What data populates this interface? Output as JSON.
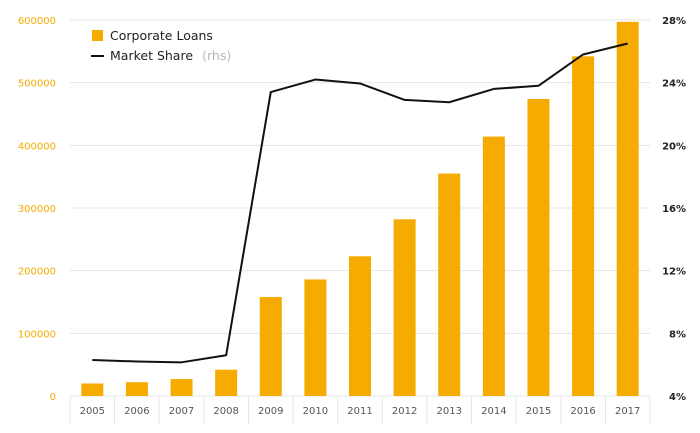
{
  "chart_data": {
    "type": "bar+line",
    "categories": [
      "2005",
      "2006",
      "2007",
      "2008",
      "2009",
      "2010",
      "2011",
      "2012",
      "2013",
      "2014",
      "2015",
      "2016",
      "2017"
    ],
    "series": [
      {
        "name": "Corporate Loans",
        "type": "bar",
        "axis": "left",
        "values": [
          20000,
          22000,
          27000,
          42000,
          158000,
          186000,
          223000,
          282000,
          355000,
          414000,
          474000,
          542000,
          597000
        ]
      },
      {
        "name": "Market Share",
        "name_note": "(rhs)",
        "type": "line",
        "axis": "right",
        "values": [
          6.3,
          6.2,
          6.15,
          6.6,
          23.4,
          24.2,
          23.95,
          22.9,
          22.75,
          23.6,
          23.8,
          25.8,
          26.5
        ]
      }
    ],
    "y_left": {
      "ticks": [
        "0",
        "100000",
        "200000",
        "300000",
        "400000",
        "500000",
        "600000"
      ],
      "range": [
        0,
        600000
      ]
    },
    "y_right": {
      "ticks": [
        "4%",
        "8%",
        "12%",
        "16%",
        "20%",
        "24%",
        "28%"
      ],
      "range": [
        4,
        28
      ]
    },
    "grid": "horizontal",
    "legend": "top-left",
    "colors": {
      "bar": "#f5ab00",
      "line": "#111111",
      "grid": "#e6e6e6",
      "left_ticks": "#f5ab00"
    }
  }
}
